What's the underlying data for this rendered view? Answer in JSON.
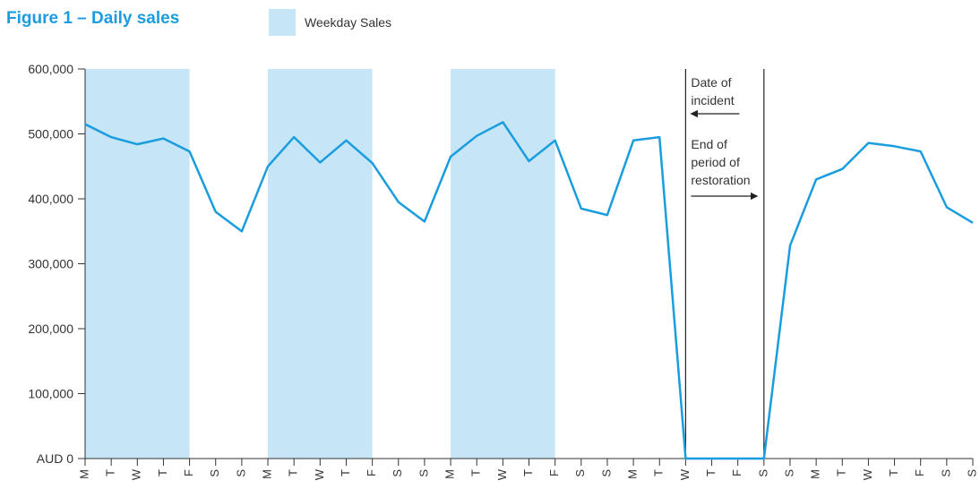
{
  "colors": {
    "accent": "#1a9ddf",
    "weekday_band": "#c6e6f7",
    "axis": "#333333"
  },
  "chart_data": {
    "type": "line",
    "title": "Figure 1 – Daily sales",
    "legend": {
      "label": "Weekday Sales",
      "placement": "top"
    },
    "ylim": [
      0,
      600000
    ],
    "y_ticks": [
      "AUD 0",
      "100,000",
      "200,000",
      "300,000",
      "400,000",
      "500,000",
      "600,000"
    ],
    "y_tick_values": [
      0,
      100000,
      200000,
      300000,
      400000,
      500000,
      600000
    ],
    "categories": [
      "M",
      "T",
      "W",
      "T",
      "F",
      "S",
      "S",
      "M",
      "T",
      "W",
      "T",
      "F",
      "S",
      "S",
      "M",
      "T",
      "W",
      "T",
      "F",
      "S",
      "S",
      "M",
      "T",
      "W",
      "T",
      "F",
      "S",
      "S",
      "M",
      "T",
      "W",
      "T",
      "F",
      "S",
      "S"
    ],
    "series": [
      {
        "values": [
          515000,
          495000,
          484000,
          493000,
          473000,
          380000,
          350000,
          450000,
          495000,
          456000,
          490000,
          455000,
          395000,
          365000,
          465000,
          497000,
          518000,
          458000,
          490000,
          385000,
          375000,
          490000,
          495000,
          0,
          0,
          0,
          0,
          328000,
          430000,
          446000,
          486000,
          481000,
          473000,
          387000,
          363000
        ]
      }
    ],
    "weekday_bands": [
      [
        0,
        4
      ],
      [
        7,
        11
      ],
      [
        14,
        18
      ]
    ],
    "annotations": [
      {
        "index": 23,
        "lines": [
          "Date of",
          "incident"
        ],
        "arrow": "left"
      },
      {
        "index": 26,
        "lines": [
          "End of",
          "period of",
          "restoration"
        ],
        "arrow": "right"
      }
    ],
    "grid": false
  }
}
